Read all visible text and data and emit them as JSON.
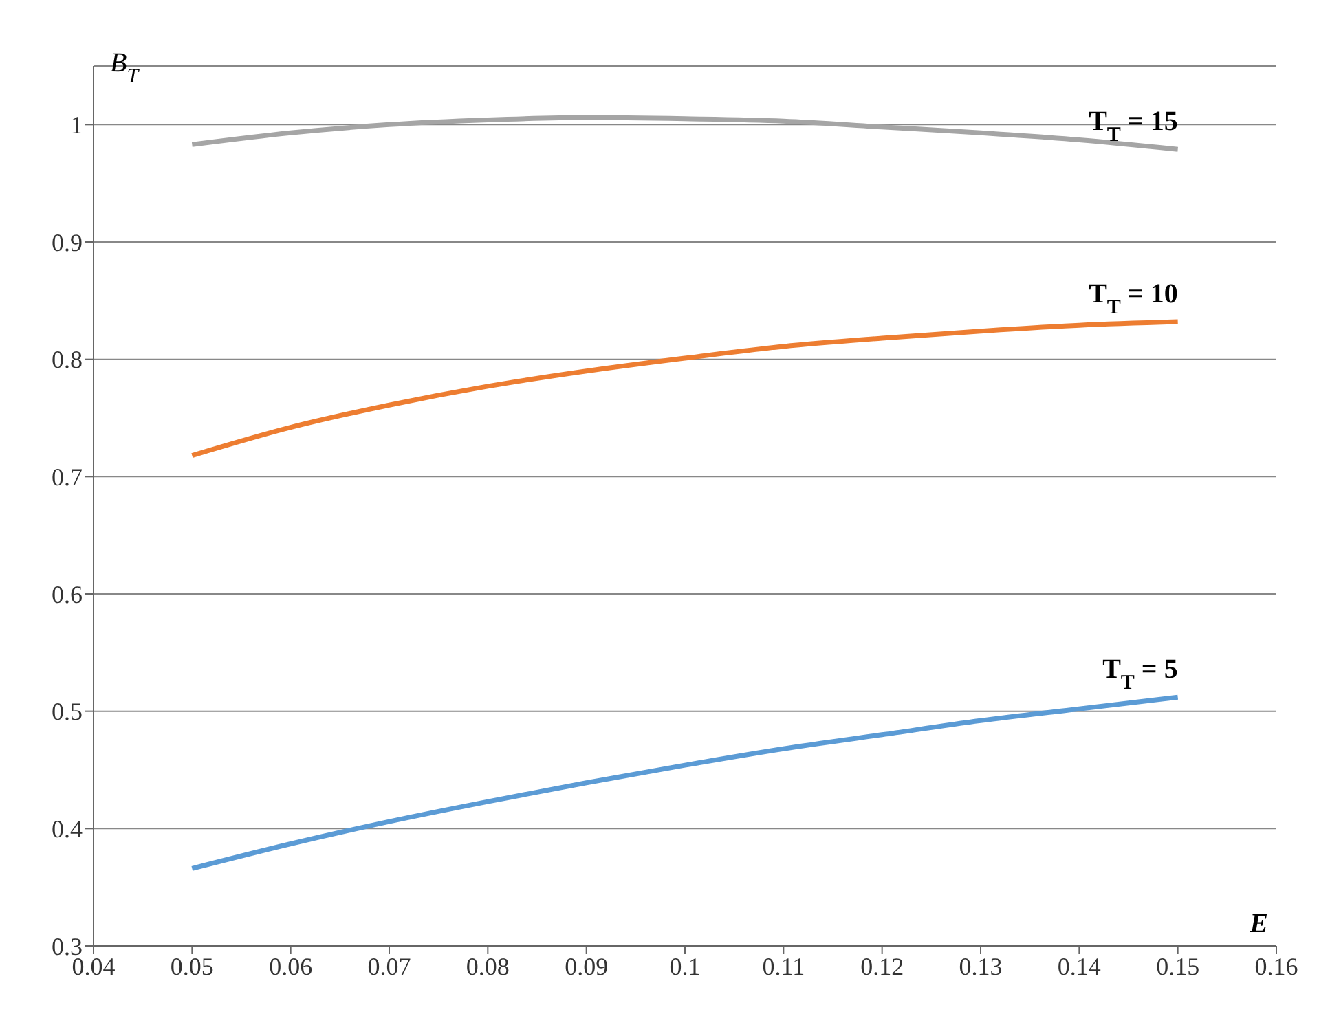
{
  "chart_data": {
    "type": "line",
    "xlabel": "E",
    "ylabel": "B$_{T}$",
    "x": [
      0.05,
      0.06,
      0.07,
      0.08,
      0.09,
      0.1,
      0.11,
      0.12,
      0.13,
      0.14,
      0.15
    ],
    "series": [
      {
        "name": "T$_{T}$ = 15",
        "color": "#a5a5a5",
        "values": [
          0.983,
          0.993,
          1.0,
          1.004,
          1.006,
          1.005,
          1.003,
          0.998,
          0.993,
          0.987,
          0.979
        ]
      },
      {
        "name": "T$_{T}$ = 10",
        "color": "#ed7d31",
        "values": [
          0.718,
          0.742,
          0.761,
          0.777,
          0.79,
          0.801,
          0.811,
          0.818,
          0.824,
          0.829,
          0.832
        ]
      },
      {
        "name": "T$_{T}$ = 5",
        "color": "#5b9bd5",
        "values": [
          0.366,
          0.387,
          0.406,
          0.423,
          0.439,
          0.454,
          0.468,
          0.48,
          0.492,
          0.502,
          0.512
        ]
      }
    ],
    "xlim": [
      0.04,
      0.16
    ],
    "xticks": [
      0.04,
      0.05,
      0.06,
      0.07,
      0.08,
      0.09,
      0.1,
      0.11,
      0.12,
      0.13,
      0.14,
      0.15,
      0.16
    ],
    "ylim": [
      0.3,
      1.05
    ],
    "yticks": [
      0.3,
      0.4,
      0.5,
      0.6,
      0.7,
      0.8,
      0.9,
      1
    ],
    "grid": "y",
    "marker": "none",
    "line_style": "solid"
  }
}
